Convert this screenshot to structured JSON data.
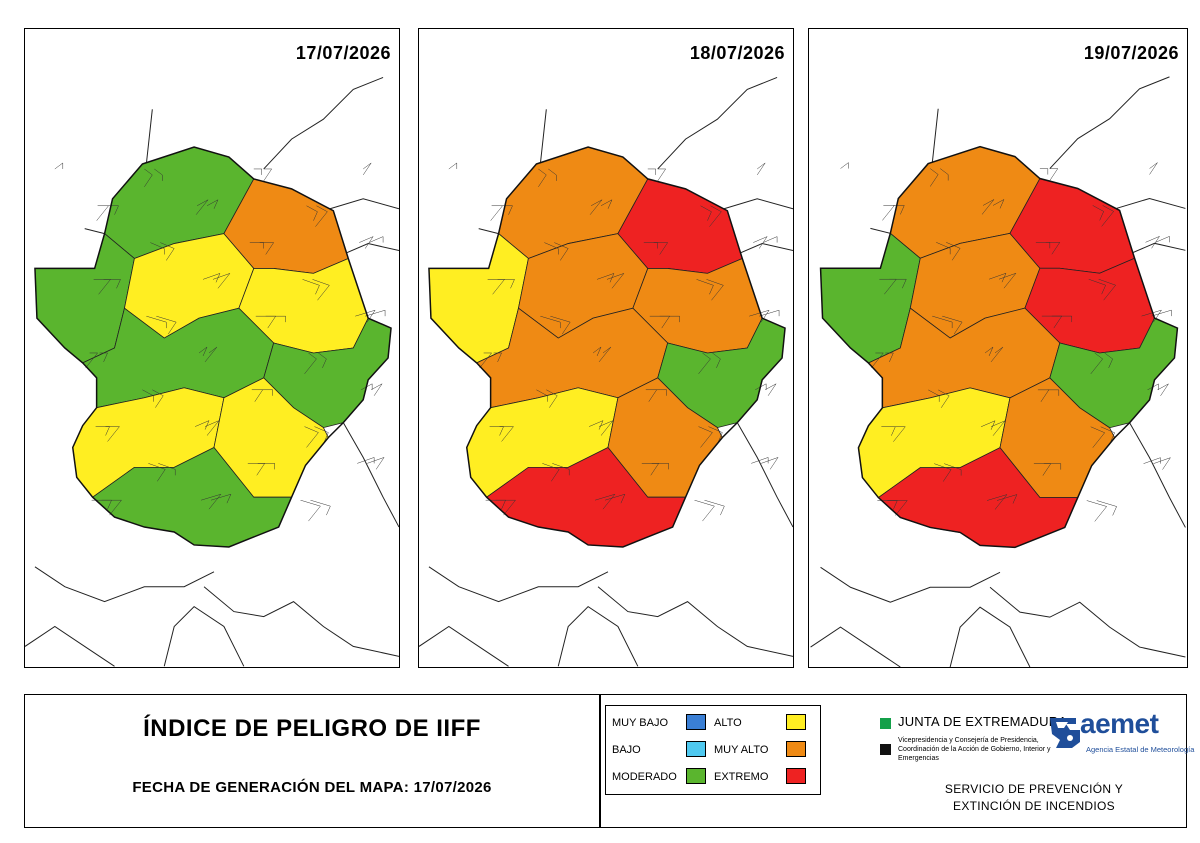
{
  "maps": [
    {
      "date": "17/07/2026",
      "zones": {
        "a": "MODERADO",
        "b": "MODERADO",
        "c": "ALTO",
        "d": "MUY ALTO",
        "e": "ALTO",
        "f": "MODERADO",
        "g": "MODERADO",
        "h": "ALTO",
        "i": "ALTO",
        "j": "MODERADO"
      }
    },
    {
      "date": "18/07/2026",
      "zones": {
        "a": "MUY ALTO",
        "b": "ALTO",
        "c": "MUY ALTO",
        "d": "EXTREMO",
        "e": "MUY ALTO",
        "f": "MUY ALTO",
        "g": "MODERADO",
        "h": "ALTO",
        "i": "MUY ALTO",
        "j": "EXTREMO"
      }
    },
    {
      "date": "19/07/2026",
      "zones": {
        "a": "MUY ALTO",
        "b": "MODERADO",
        "c": "MUY ALTO",
        "d": "EXTREMO",
        "e": "EXTREMO",
        "f": "MUY ALTO",
        "g": "MODERADO",
        "h": "ALTO",
        "i": "MUY ALTO",
        "j": "EXTREMO"
      }
    }
  ],
  "title": "ÍNDICE DE PELIGRO DE IIFF",
  "generation_label": "FECHA DE GENERACIÓN DEL MAPA: 17/07/2026",
  "legend": [
    {
      "label": "MUY BAJO",
      "color": "#3a7fd5"
    },
    {
      "label": "BAJO",
      "color": "#4fc9f0"
    },
    {
      "label": "MODERADO",
      "color": "#5ab52e"
    },
    {
      "label": "ALTO",
      "color": "#ffee22"
    },
    {
      "label": "MUY ALTO",
      "color": "#ef8a14"
    },
    {
      "label": "EXTREMO",
      "color": "#ee2222"
    }
  ],
  "organizations": {
    "junta_name": "JUNTA DE EXTREMADURA",
    "junta_sub": "Vicepresidencia y Consejería de Presidencia, Coordinación de la Acción de Gobierno, Interior y Emergencias",
    "aemet_name": "aemet",
    "aemet_sub": "Agencia Estatal de Meteorología",
    "junta_color": "#14a04a"
  },
  "service": {
    "line1": "SERVICIO DE PREVENCIÓN Y",
    "line2": "EXTINCIÓN DE INCENDIOS"
  }
}
